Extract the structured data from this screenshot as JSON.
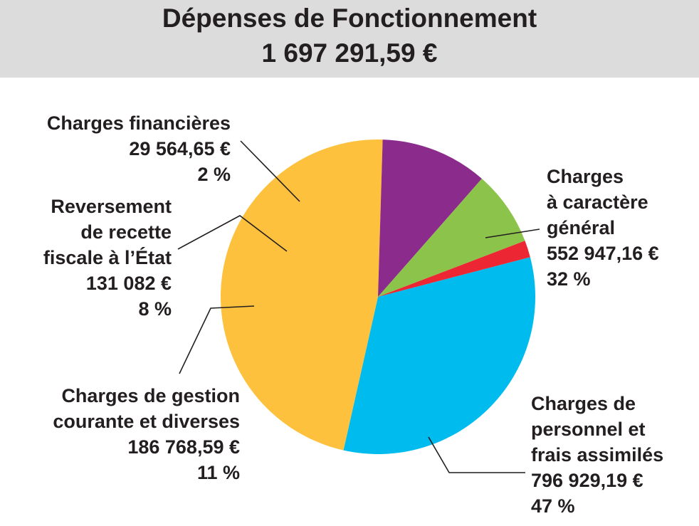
{
  "header": {
    "title": "Dépenses de Fonctionnement",
    "total": "1 697 291,59 €"
  },
  "chart_data": {
    "type": "pie",
    "title": "Dépenses de Fonctionnement",
    "subtitle": "1 697 291,59 €",
    "slices": [
      {
        "name": "Charges à caractère général",
        "name_lines": [
          "Charges",
          "à caractère",
          "général"
        ],
        "value": 552947.16,
        "value_label": "552 947,16 €",
        "percent_label": "32 %",
        "color": "#00bbee"
      },
      {
        "name": "Charges de personnel et frais assimilés",
        "name_lines": [
          "Charges de",
          "personnel et",
          "frais assimilés"
        ],
        "value": 796929.19,
        "value_label": "796 929,19 €",
        "percent_label": "47 %",
        "color": "#fec13d"
      },
      {
        "name": "Charges de gestion courante et diverses",
        "name_lines": [
          "Charges de gestion",
          "courante et diverses"
        ],
        "value": 186768.59,
        "value_label": "186 768,59 €",
        "percent_label": "11 %",
        "color": "#8b2c8c"
      },
      {
        "name": "Reversement de recette fiscale à l’État",
        "name_lines": [
          "Reversement",
          "de recette",
          "fiscale à l’État"
        ],
        "value": 131082,
        "value_label": "131 082 €",
        "percent_label": "8 %",
        "color": "#8cc34a"
      },
      {
        "name": "Charges financières",
        "name_lines": [
          "Charges financières"
        ],
        "value": 29564.65,
        "value_label": "29 564,65 €",
        "percent_label": "2 %",
        "color": "#ec2633"
      }
    ]
  }
}
